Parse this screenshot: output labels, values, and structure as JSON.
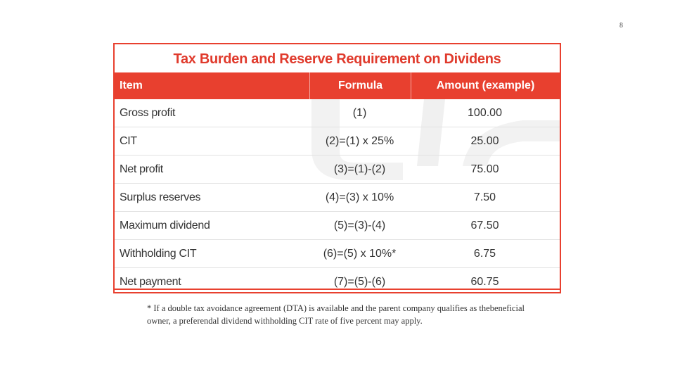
{
  "page_number": "8",
  "table": {
    "title": "Tax Burden and Reserve Requirement on Dividens",
    "headers": [
      "Item",
      "Formula",
      "Amount (example)"
    ],
    "rows": [
      [
        "Gross profit",
        "(1)",
        "100.00"
      ],
      [
        "CIT",
        "(2)=(1) x 25%",
        "25.00"
      ],
      [
        "Net profit",
        "(3)=(1)-(2)",
        "75.00"
      ],
      [
        "Surplus reserves",
        "(4)=(3) x 10%",
        "7.50"
      ],
      [
        "Maximum dividend",
        "(5)=(3)-(4)",
        "67.50"
      ],
      [
        "Withholding CIT",
        "(6)=(5) x 10%*",
        "6.75"
      ],
      [
        "Net payment",
        "(7)=(5)-(6)",
        "60.75"
      ]
    ],
    "accent_color": "#e8402f"
  },
  "footnote": "* If a double tax avoidance agreement (DTA) is available and the parent company qualifies as thebeneficial owner, a preferendal dividend withholding CIT rate of five percent may apply."
}
